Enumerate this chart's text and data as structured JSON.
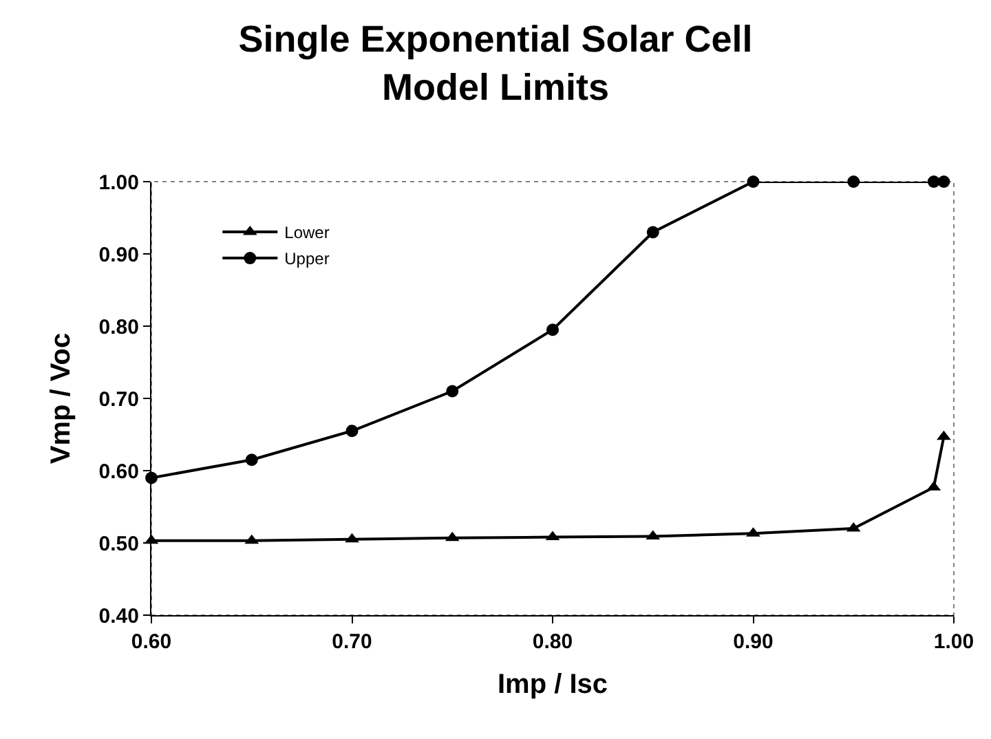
{
  "chart_data": {
    "type": "line",
    "title": "Single Exponential Solar Cell\nModel Limits",
    "xlabel": "Imp / Isc",
    "ylabel": "Vmp / Voc",
    "x": [
      0.6,
      0.65,
      0.7,
      0.75,
      0.8,
      0.85,
      0.9,
      0.95,
      0.99,
      0.995
    ],
    "series": [
      {
        "name": "Lower",
        "color": "#000000",
        "marker": "triangle",
        "values": [
          0.503,
          0.503,
          0.505,
          0.507,
          0.508,
          0.509,
          0.513,
          0.52,
          0.577,
          0.647
        ]
      },
      {
        "name": "Upper",
        "color": "#000000",
        "marker": "circle",
        "values": [
          0.59,
          0.615,
          0.655,
          0.71,
          0.795,
          0.93,
          1.0,
          1.0,
          1.0,
          1.0
        ]
      }
    ],
    "xlim": [
      0.6,
      1.0
    ],
    "xticks": [
      {
        "value": 0.6,
        "label": "0.60"
      },
      {
        "value": 0.7,
        "label": "0.70"
      },
      {
        "value": 0.8,
        "label": "0.80"
      },
      {
        "value": 0.9,
        "label": "0.90"
      },
      {
        "value": 1.0,
        "label": "1.00"
      }
    ],
    "ylim": [
      0.4,
      1.0
    ],
    "yticks": [
      {
        "value": 0.4,
        "label": "0.40"
      },
      {
        "value": 0.5,
        "label": "0.50"
      },
      {
        "value": 0.6,
        "label": "0.60"
      },
      {
        "value": 0.7,
        "label": "0.70"
      },
      {
        "value": 0.8,
        "label": "0.80"
      },
      {
        "value": 0.9,
        "label": "0.90"
      },
      {
        "value": 1.0,
        "label": "1.00"
      }
    ],
    "grid": false,
    "legend": "top left",
    "line_style": "solid"
  }
}
